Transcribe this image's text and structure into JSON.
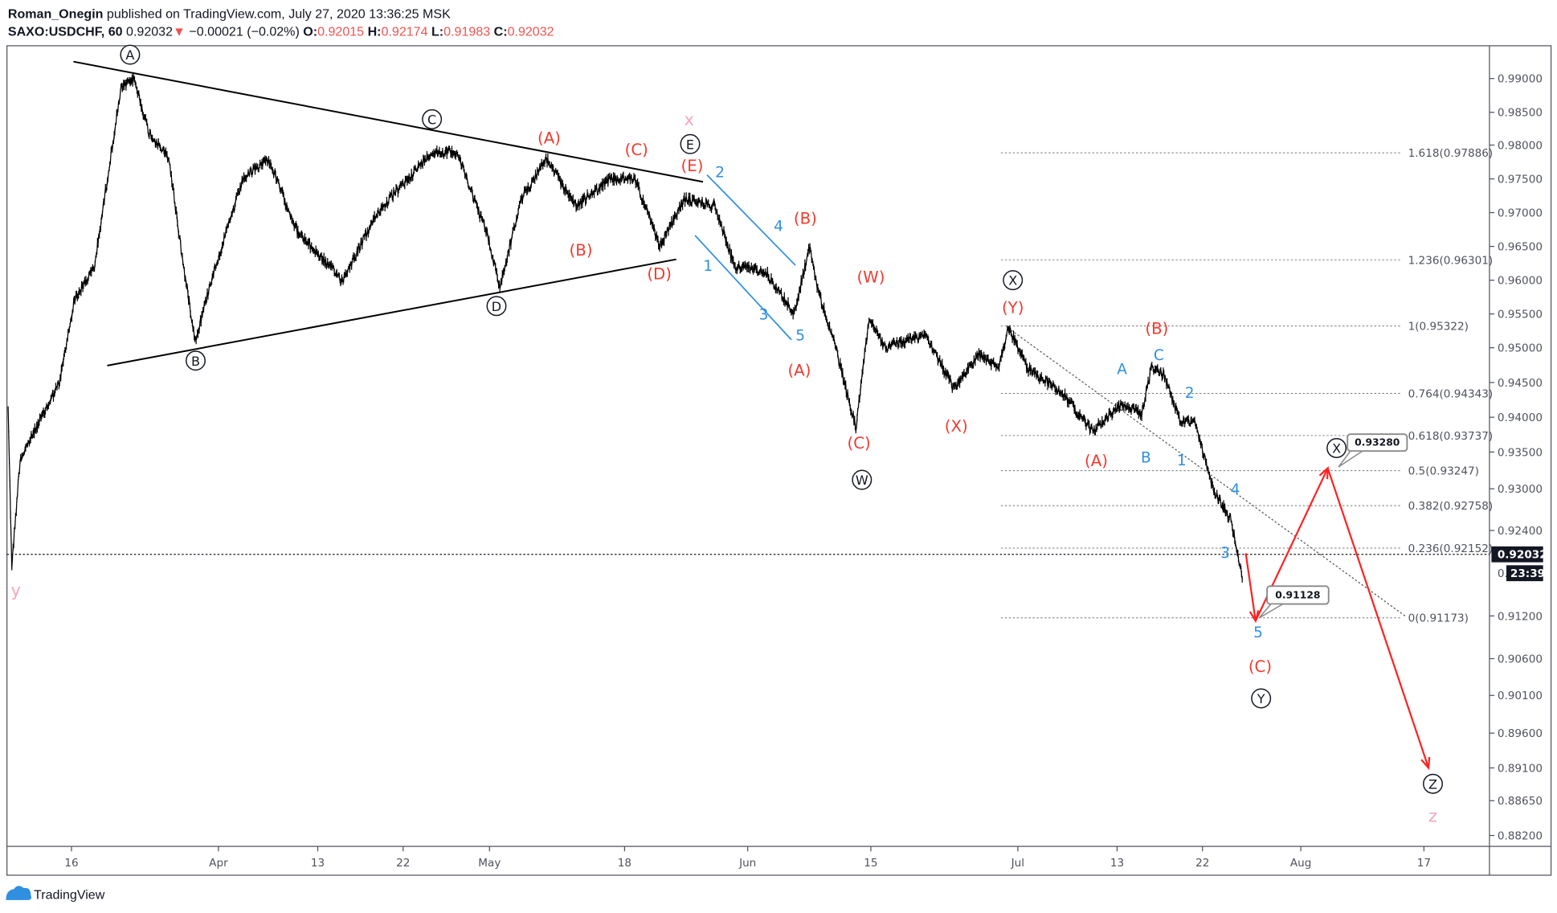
{
  "header": {
    "author": "Roman_Onegin",
    "published": " published on TradingView.com, July 27, 2020 13:36:25 MSK",
    "symbol": "SAXO:USDCHF, 60",
    "last": "0.92032",
    "change": "−0.00021 (−0.02%)",
    "o_label": "O:",
    "o": "0.92015",
    "h_label": "H:",
    "h": "0.92174",
    "l_label": "L:",
    "l": "0.91983",
    "c_label": "C:",
    "c": "0.92032"
  },
  "price_badge": "0.92032",
  "countdown": "23:39",
  "countdown_prefix": "0.",
  "footer_brand": "TradingView",
  "colors": {
    "red": "#f23b2f",
    "blue": "#2f8fe0",
    "pink": "#f4a7b9",
    "down": "#ef5350"
  },
  "chart_data": {
    "type": "line",
    "title": "SAXO:USDCHF, 60",
    "x_unit": "days since 2020-03-01",
    "y_ticks": [
      "0.99000",
      "0.98500",
      "0.98000",
      "0.97500",
      "0.97000",
      "0.96500",
      "0.96000",
      "0.95500",
      "0.95000",
      "0.94500",
      "0.94000",
      "0.93500",
      "0.93000",
      "0.92400",
      "0.91200",
      "0.90600",
      "0.90100",
      "0.89600",
      "0.89100",
      "0.88650",
      "0.88200"
    ],
    "x_ticks": [
      "16",
      "Apr",
      "13",
      "22",
      "May",
      "18",
      "Jun",
      "15",
      "Jul",
      "13",
      "22",
      "Aug",
      "17"
    ],
    "price_path": [
      [
        8.1,
        0.9415
      ],
      [
        8.5,
        0.919
      ],
      [
        9.4,
        0.934
      ],
      [
        13.7,
        0.945
      ],
      [
        15.3,
        0.957
      ],
      [
        17.5,
        0.962
      ],
      [
        18.9,
        0.975
      ],
      [
        20.4,
        0.9885
      ],
      [
        21.8,
        0.99
      ],
      [
        23.4,
        0.982
      ],
      [
        25.6,
        0.978
      ],
      [
        27.2,
        0.962
      ],
      [
        28.5,
        0.951
      ],
      [
        30.2,
        0.96
      ],
      [
        34,
        0.975
      ],
      [
        37,
        0.978
      ],
      [
        40.6,
        0.967
      ],
      [
        45.6,
        0.96
      ],
      [
        49.3,
        0.97
      ],
      [
        55,
        0.979
      ],
      [
        57.6,
        0.979
      ],
      [
        60.7,
        0.967
      ],
      [
        62.3,
        0.959
      ],
      [
        65,
        0.972
      ],
      [
        68.1,
        0.978
      ],
      [
        71.9,
        0.971
      ],
      [
        76.3,
        0.975
      ],
      [
        79.2,
        0.975
      ],
      [
        82,
        0.965
      ],
      [
        84.8,
        0.972
      ],
      [
        88.3,
        0.971
      ],
      [
        90.5,
        0.962
      ],
      [
        93.9,
        0.9615
      ],
      [
        97.3,
        0.955
      ],
      [
        99,
        0.965
      ],
      [
        100.1,
        0.958
      ],
      [
        101.8,
        0.951
      ],
      [
        103,
        0.945
      ],
      [
        104.3,
        0.9385
      ],
      [
        105.8,
        0.9545
      ],
      [
        107.5,
        0.95
      ],
      [
        112,
        0.952
      ],
      [
        115,
        0.944
      ],
      [
        117.7,
        0.949
      ],
      [
        119.9,
        0.947
      ],
      [
        121,
        0.953
      ],
      [
        123.2,
        0.947
      ],
      [
        127.4,
        0.9435
      ],
      [
        131,
        0.938
      ],
      [
        134.5,
        0.942
      ],
      [
        136.6,
        0.9405
      ],
      [
        137.6,
        0.947
      ],
      [
        139,
        0.946
      ],
      [
        140.6,
        0.9395
      ],
      [
        142.3,
        0.939
      ],
      [
        143.9,
        0.9305
      ],
      [
        145.9,
        0.9255
      ],
      [
        147.1,
        0.917
      ]
    ],
    "projection": [
      [
        147.4,
        0.9208
      ],
      [
        148.4,
        0.9113
      ],
      [
        156.5,
        0.9328
      ],
      [
        169.6,
        0.891
      ]
    ],
    "fib_levels": [
      {
        "label": "1.618(0.97886)",
        "price": 0.97886
      },
      {
        "label": "1.236(0.96301)",
        "price": 0.96301
      },
      {
        "label": "1(0.95322)",
        "price": 0.95322
      },
      {
        "label": "0.764(0.94343)",
        "price": 0.94343
      },
      {
        "label": "0.618(0.93737)",
        "price": 0.93737
      },
      {
        "label": "0.5(0.93247)",
        "price": 0.93247
      },
      {
        "label": "0.382(0.92758)",
        "price": 0.92758
      },
      {
        "label": "0.236(0.92152)",
        "price": 0.92152
      },
      {
        "label": "0(0.91173)",
        "price": 0.91173
      }
    ],
    "callouts": [
      "0.93280",
      "0.91128"
    ],
    "wave_labels": {
      "circled": [
        "A",
        "B",
        "C",
        "D",
        "E",
        "W",
        "X",
        "Y",
        "X",
        "Z"
      ],
      "red": [
        "(A)",
        "(C)",
        "(E)",
        "(B)",
        "(D)",
        "(B)",
        "(W)",
        "(A)",
        "(C)",
        "(X)",
        "(Y)",
        "(B)",
        "(A)",
        "(C)"
      ],
      "blue": [
        "2",
        "4",
        "1",
        "3",
        "5",
        "A",
        "C",
        "2",
        "B",
        "1",
        "4",
        "3",
        "5"
      ],
      "pink": [
        "x",
        "y",
        "z"
      ]
    }
  }
}
